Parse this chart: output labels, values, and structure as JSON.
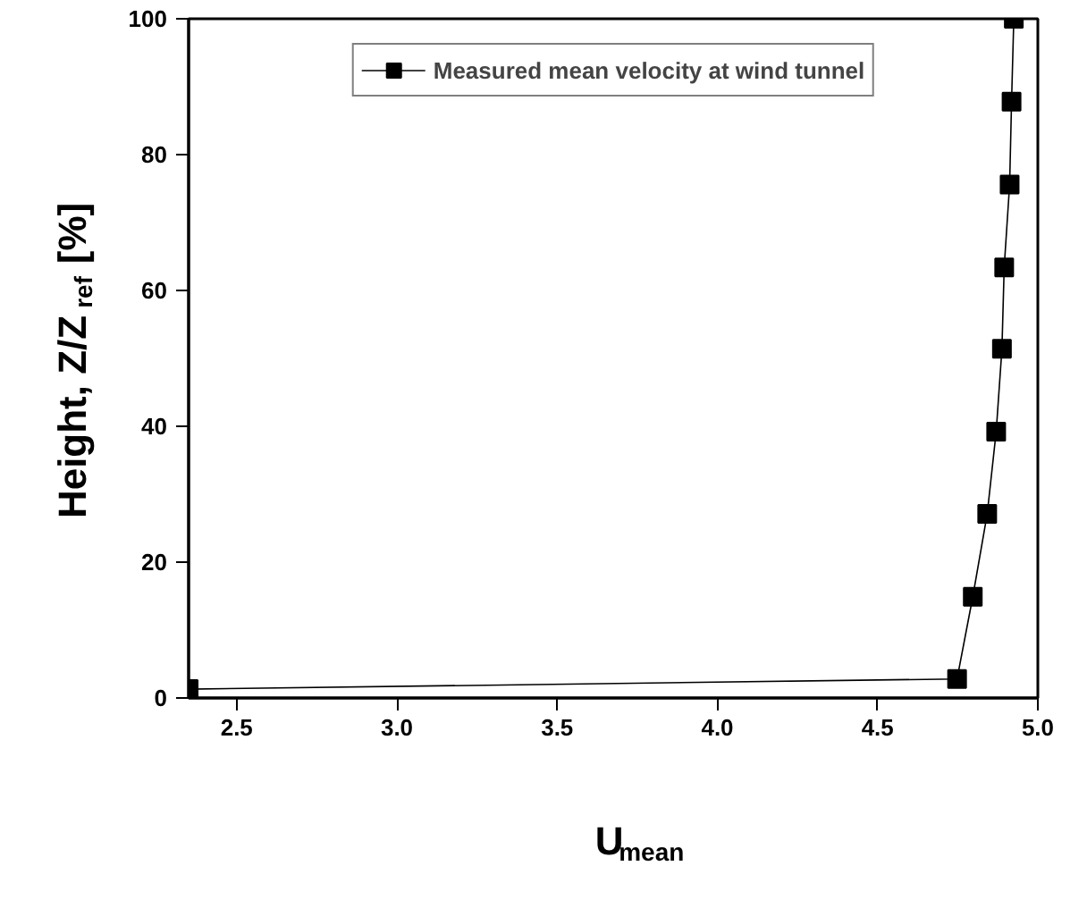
{
  "chart_data": {
    "type": "line",
    "xlabel": "U$_{mean}$",
    "ylabel": "Height, Z/Z$_{ref}$ [%]",
    "x": [
      2.35,
      4.748,
      4.797,
      4.842,
      4.87,
      4.888,
      4.895,
      4.912,
      4.918,
      4.925
    ],
    "series": [
      {
        "name": "Measured mean velocity at wind tunnel",
        "color": "#000000",
        "values": [
          1.3,
          2.8,
          14.9,
          27.1,
          39.2,
          51.4,
          63.4,
          75.6,
          87.8,
          100
        ]
      }
    ],
    "xlim": [
      2.35,
      5.0
    ],
    "xticks": [
      {
        "value": 2.5,
        "label": "2.5"
      },
      {
        "value": 3.0,
        "label": "3.0"
      },
      {
        "value": 3.5,
        "label": "3.5"
      },
      {
        "value": 4.0,
        "label": "4.0"
      },
      {
        "value": 4.5,
        "label": "4.5"
      },
      {
        "value": 5.0,
        "label": "5.0"
      }
    ],
    "ylim": [
      0,
      100
    ],
    "yticks": [
      0,
      20,
      40,
      60,
      80,
      100
    ],
    "legend": "top",
    "marker": "square",
    "line_style": "solid",
    "grid": false
  }
}
